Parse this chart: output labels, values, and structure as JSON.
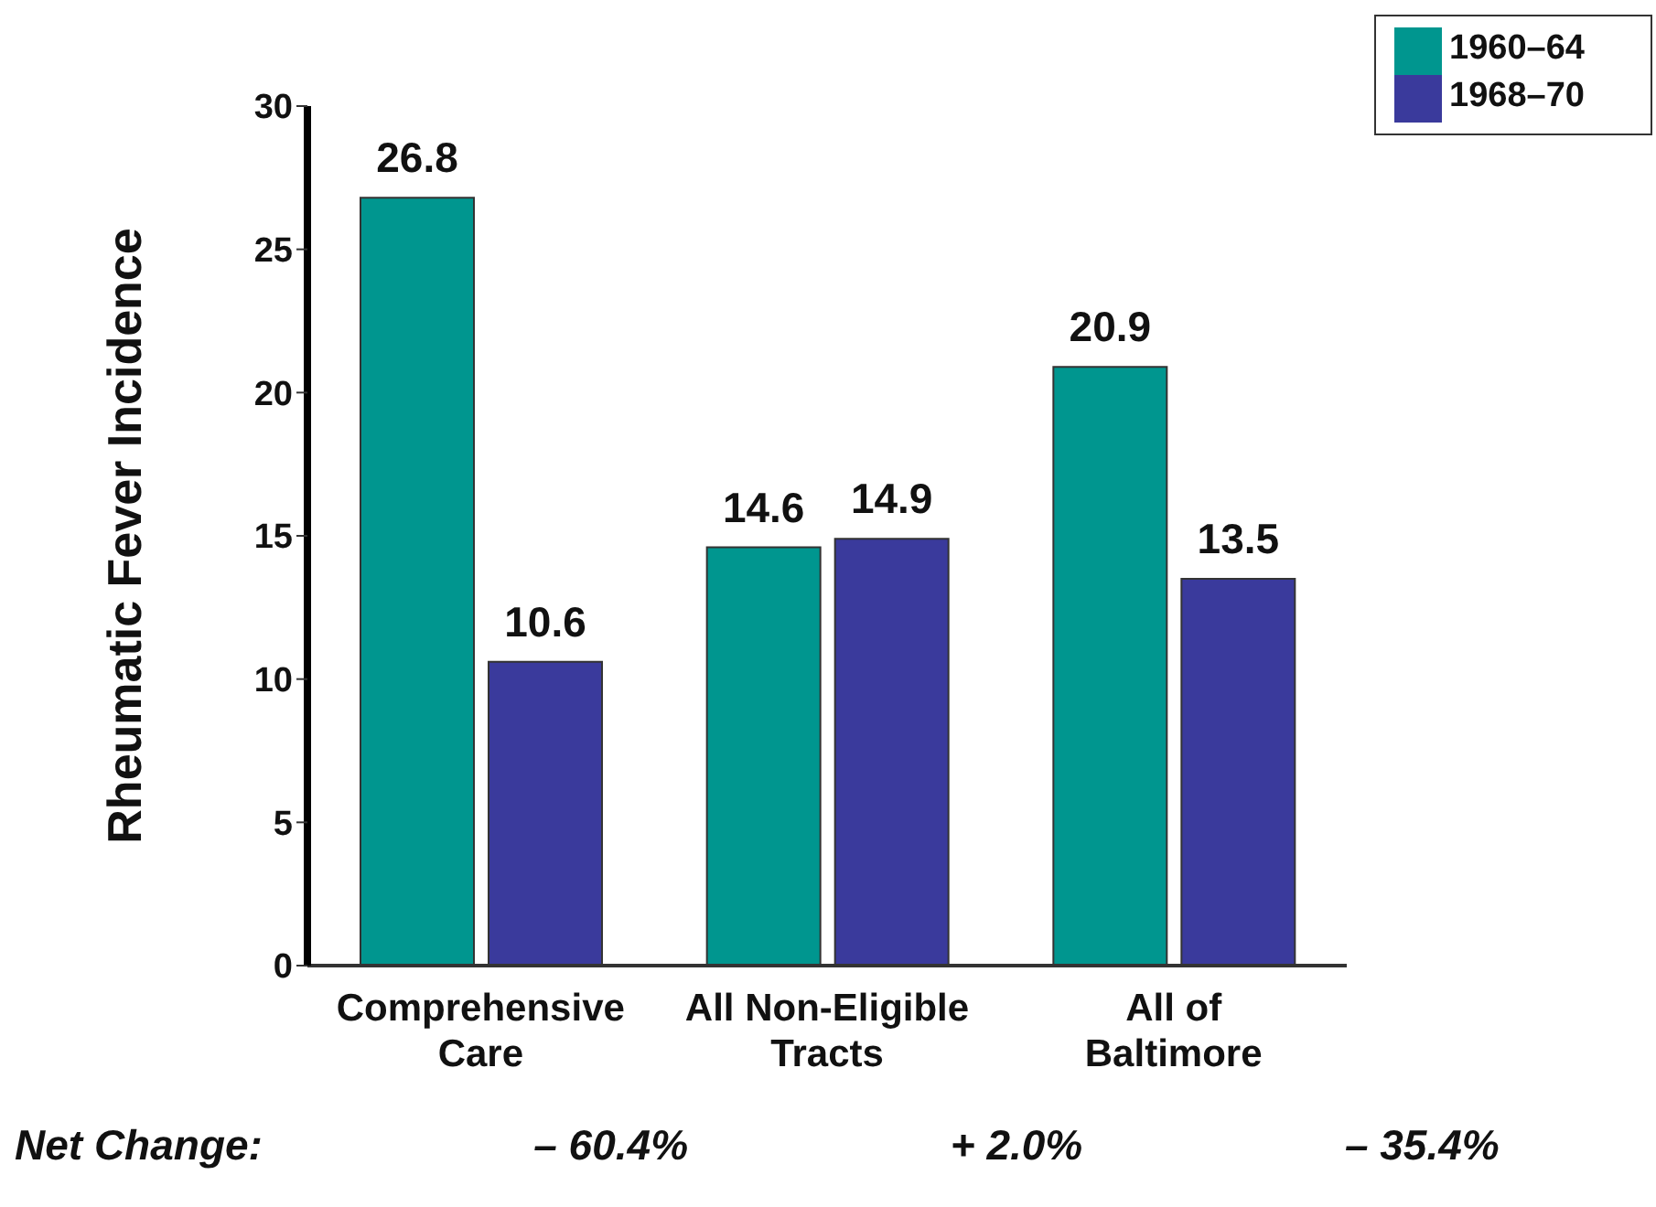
{
  "chart_data": {
    "type": "bar",
    "ylabel": "Rheumatic Fever Incidence",
    "categories": [
      "Comprehensive Care",
      "All Non-Eligible Tracts",
      "All of Baltimore"
    ],
    "series": [
      {
        "name": "1960–64",
        "color": "#00968f",
        "values": [
          26.8,
          14.6,
          20.9
        ]
      },
      {
        "name": "1968–70",
        "color": "#3a3a9c",
        "values": [
          10.6,
          14.9,
          13.5
        ]
      }
    ],
    "ylim": [
      0,
      30
    ],
    "yticks": [
      0,
      5,
      10,
      15,
      20,
      25,
      30
    ],
    "data_labels": true,
    "legend": "top right",
    "grid": false,
    "annotations": [
      "Net Change:",
      "– 60.4%",
      "+ 2.0%",
      "– 35.4%"
    ]
  }
}
